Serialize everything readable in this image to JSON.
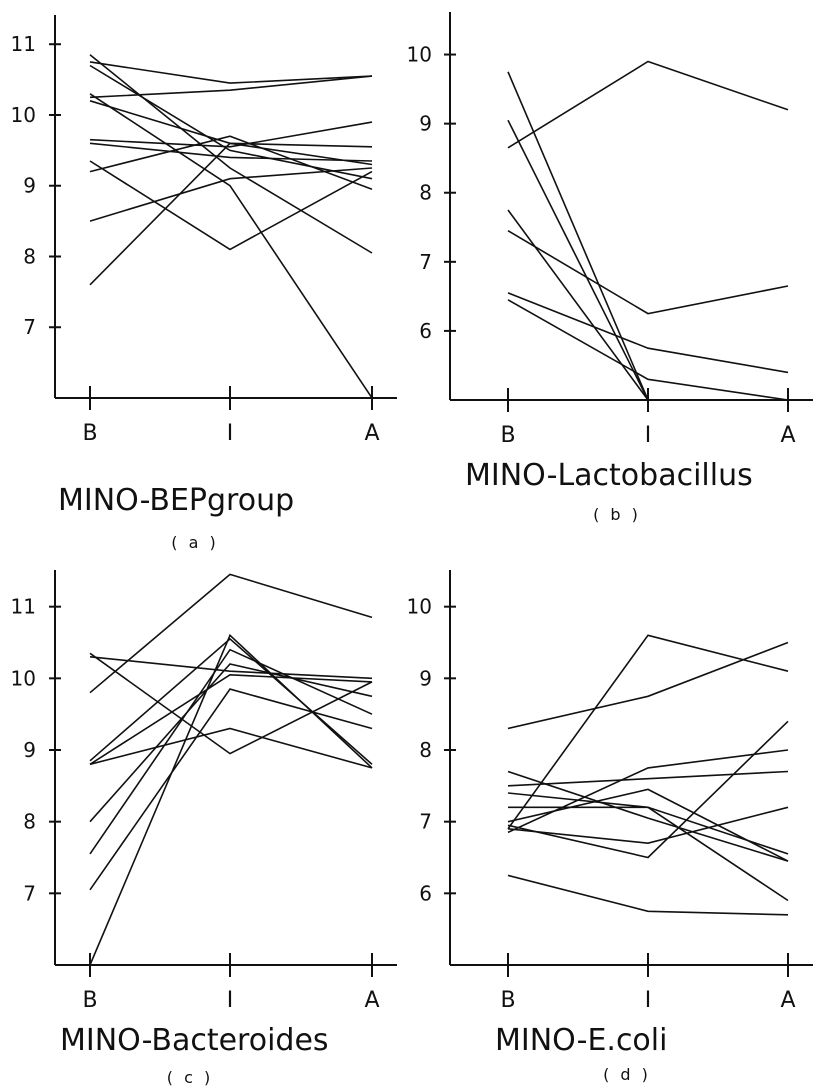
{
  "chart_data": [
    {
      "type": "line",
      "title": "MINO-BEPgroup",
      "subtitle": "( a )",
      "categories": [
        "B",
        "I",
        "A"
      ],
      "yticks": [
        7,
        8,
        9,
        10,
        11
      ],
      "ylim": [
        6.0,
        11.3
      ],
      "series": [
        {
          "values": [
            10.75,
            10.45,
            10.55
          ]
        },
        {
          "values": [
            10.25,
            10.35,
            10.55
          ]
        },
        {
          "values": [
            10.85,
            9.25,
            8.05
          ]
        },
        {
          "values": [
            10.7,
            9.5,
            9.1
          ]
        },
        {
          "values": [
            10.2,
            9.6,
            9.3
          ]
        },
        {
          "values": [
            9.65,
            9.55,
            9.9
          ]
        },
        {
          "values": [
            9.6,
            9.4,
            9.35
          ]
        },
        {
          "values": [
            9.2,
            9.7,
            8.95
          ]
        },
        {
          "values": [
            8.5,
            9.1,
            9.25
          ]
        },
        {
          "values": [
            9.35,
            8.1,
            9.2
          ]
        },
        {
          "values": [
            7.6,
            9.6,
            9.55
          ]
        },
        {
          "values": [
            10.3,
            9.0,
            6.0
          ]
        }
      ]
    },
    {
      "type": "line",
      "title": "MINO-Lactobacillus",
      "subtitle": "( b )",
      "categories": [
        "B",
        "I",
        "A"
      ],
      "yticks": [
        6,
        7,
        8,
        9,
        10
      ],
      "ylim": [
        5.0,
        10.5
      ],
      "series": [
        {
          "values": [
            8.65,
            9.9,
            9.2
          ]
        },
        {
          "values": [
            9.75,
            5.0,
            null
          ]
        },
        {
          "values": [
            9.05,
            5.0,
            null
          ]
        },
        {
          "values": [
            7.75,
            5.0,
            null
          ]
        },
        {
          "values": [
            7.45,
            6.25,
            6.65
          ]
        },
        {
          "values": [
            6.55,
            5.75,
            5.4
          ]
        },
        {
          "values": [
            6.45,
            5.3,
            5.0
          ]
        }
      ]
    },
    {
      "type": "line",
      "title": "MINO-Bacteroides",
      "subtitle": "( c )",
      "categories": [
        "B",
        "I",
        "A"
      ],
      "yticks": [
        7,
        8,
        9,
        10,
        11
      ],
      "ylim": [
        6.0,
        11.4
      ],
      "series": [
        {
          "values": [
            9.8,
            11.45,
            10.85
          ]
        },
        {
          "values": [
            10.35,
            8.95,
            9.95
          ]
        },
        {
          "values": [
            10.3,
            10.1,
            10.0
          ]
        },
        {
          "values": [
            8.85,
            10.55,
            8.8
          ]
        },
        {
          "values": [
            8.8,
            9.3,
            8.75
          ]
        },
        {
          "values": [
            8.8,
            10.05,
            9.95
          ]
        },
        {
          "values": [
            8.0,
            10.2,
            9.75
          ]
        },
        {
          "values": [
            7.55,
            10.4,
            9.5
          ]
        },
        {
          "values": [
            7.05,
            9.85,
            9.3
          ]
        },
        {
          "values": [
            6.0,
            10.6,
            8.75
          ]
        }
      ]
    },
    {
      "type": "line",
      "title": "MINO-E.coli",
      "subtitle": "( d )",
      "categories": [
        "B",
        "I",
        "A"
      ],
      "yticks": [
        6,
        7,
        8,
        9,
        10
      ],
      "ylim": [
        5.0,
        10.4
      ],
      "series": [
        {
          "values": [
            8.3,
            8.75,
            9.5
          ]
        },
        {
          "values": [
            6.9,
            9.6,
            9.1
          ]
        },
        {
          "values": [
            7.7,
            7.05,
            6.45
          ]
        },
        {
          "values": [
            7.5,
            7.6,
            7.7
          ]
        },
        {
          "values": [
            7.4,
            7.2,
            5.9
          ]
        },
        {
          "values": [
            7.2,
            7.2,
            6.55
          ]
        },
        {
          "values": [
            7.0,
            7.45,
            6.45
          ]
        },
        {
          "values": [
            6.9,
            6.7,
            7.2
          ]
        },
        {
          "values": [
            6.85,
            7.75,
            8.0
          ]
        },
        {
          "values": [
            6.95,
            6.5,
            8.4
          ]
        },
        {
          "values": [
            6.25,
            5.75,
            5.7
          ]
        }
      ]
    }
  ]
}
